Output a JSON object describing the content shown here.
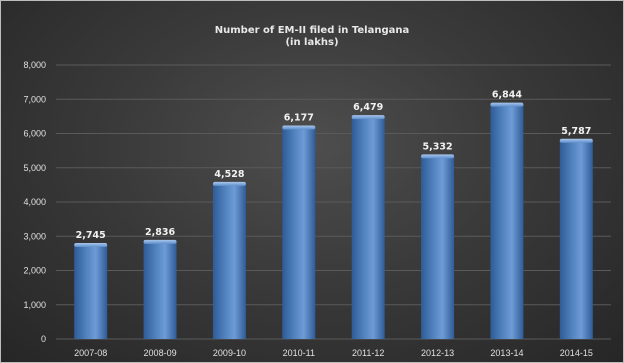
{
  "chart_data": {
    "type": "bar",
    "title": "Number of EM-II filed in Telangana",
    "subtitle": "(in lakhs)",
    "categories": [
      "2007-08",
      "2008-09",
      "2009-10",
      "2010-11",
      "2011-12",
      "2012-13",
      "2013-14",
      "2014-15"
    ],
    "values": [
      2745,
      2836,
      4528,
      6177,
      6479,
      5332,
      6844,
      5787
    ],
    "data_labels": [
      "2,745",
      "2,836",
      "4,528",
      "6,177",
      "6,479",
      "5,332",
      "6,844",
      "5,787"
    ],
    "yticks": [
      "0",
      "1,000",
      "2,000",
      "3,000",
      "4,000",
      "5,000",
      "6,000",
      "7,000",
      "8,000"
    ],
    "ylim": [
      0,
      8000
    ],
    "xlabel": "",
    "ylabel": "",
    "grid": true,
    "legend": "none",
    "colors": {
      "bar_top": "#8eb4e3",
      "bar_mid": "#4f81bd",
      "bar_bottom": "#2f5b96",
      "grid": "#5a5a5a",
      "background": "#3a3a3a",
      "text": "#e0e0e0"
    }
  }
}
